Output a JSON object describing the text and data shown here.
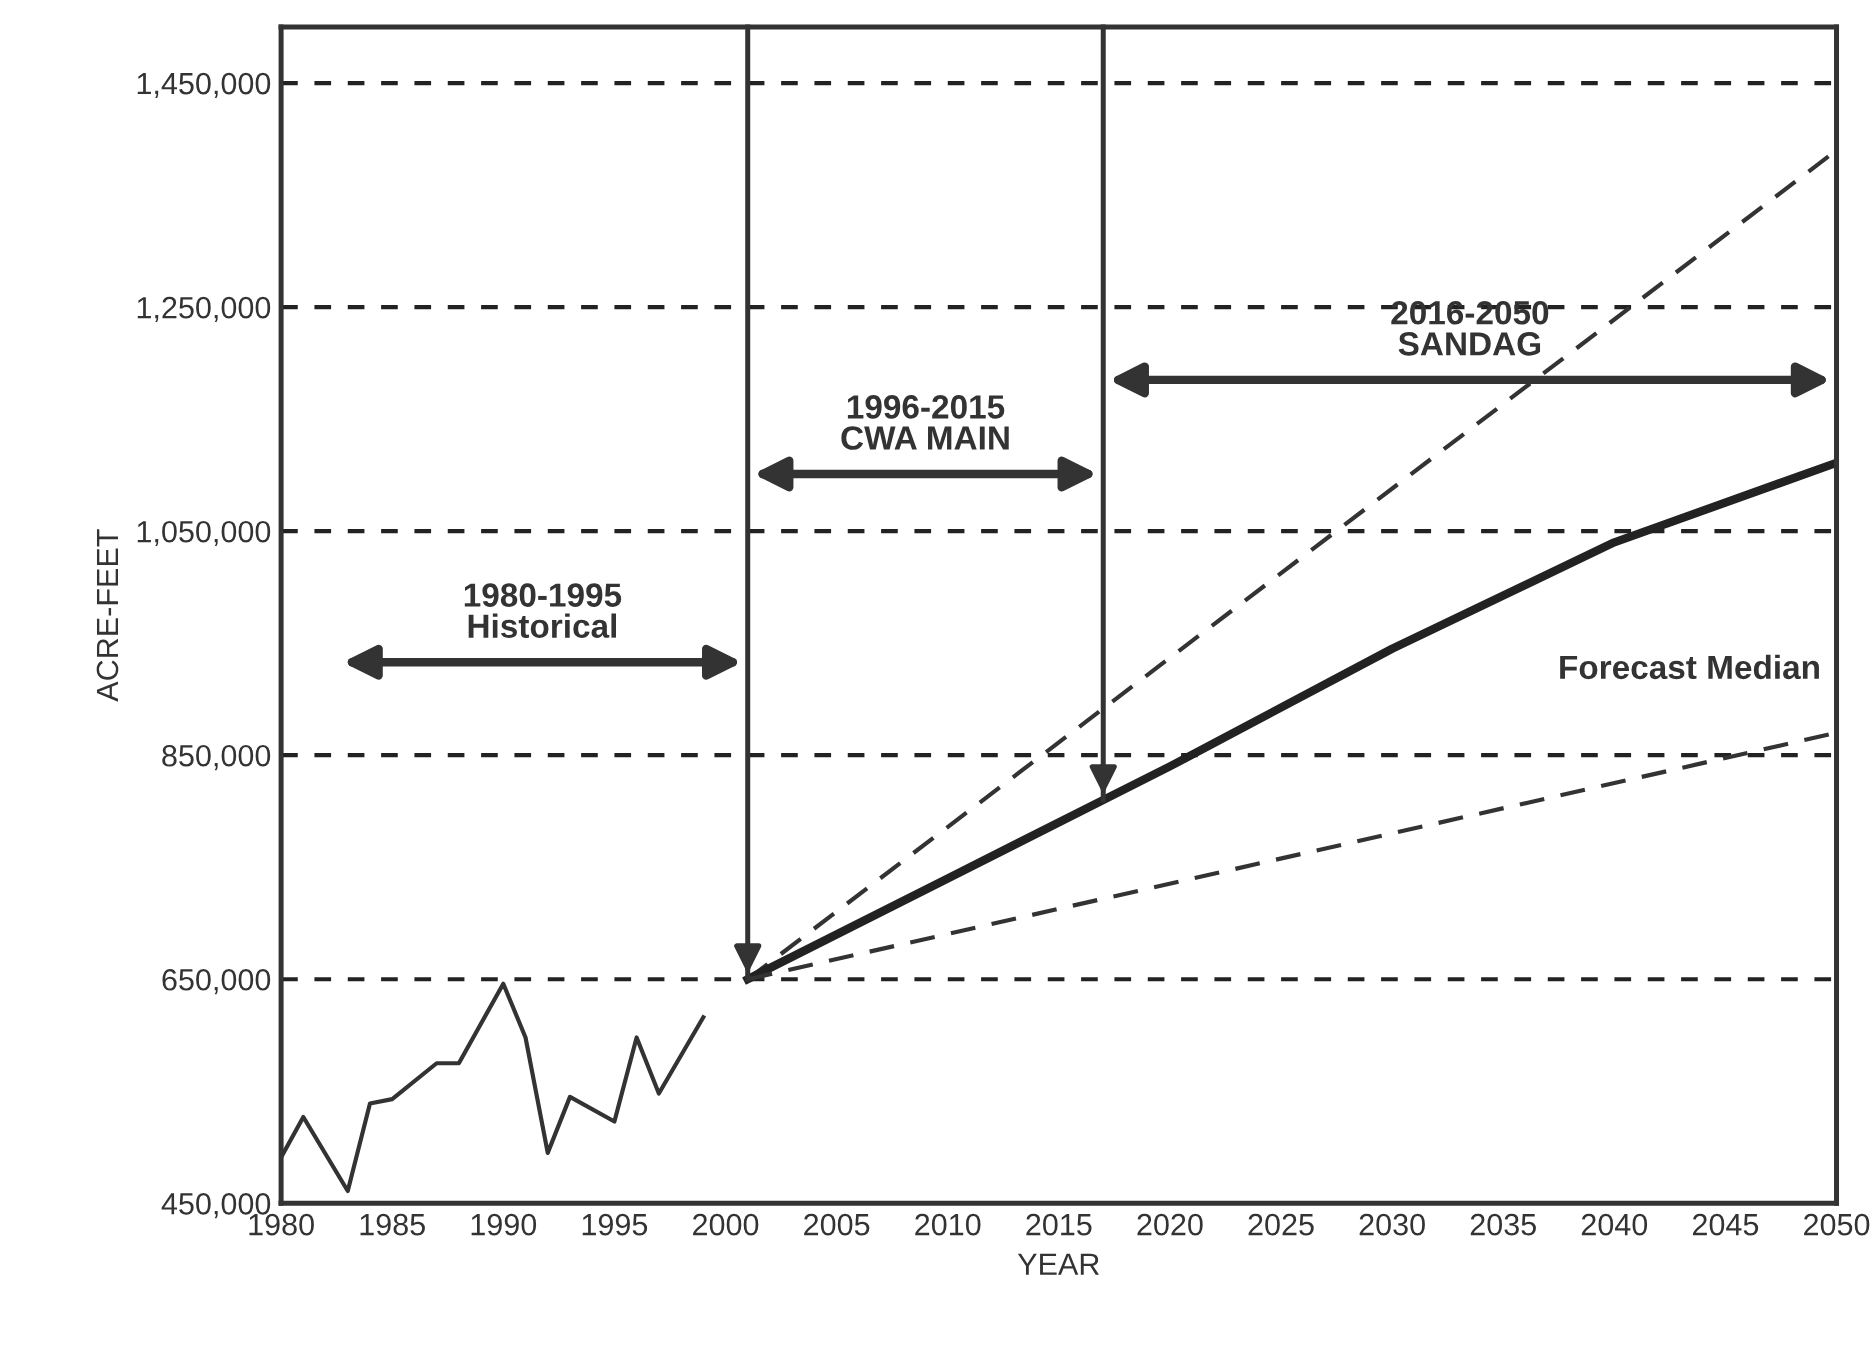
{
  "chart_data": {
    "type": "line",
    "xlabel": "YEAR",
    "ylabel": "ACRE-FEET",
    "xlim": [
      1980,
      2050
    ],
    "xticks": [
      1980,
      1985,
      1990,
      1995,
      2000,
      2005,
      2010,
      2015,
      2020,
      2025,
      2030,
      2035,
      2040,
      2045,
      2050
    ],
    "ylim": [
      450000,
      1500000
    ],
    "yticks": [
      {
        "value": 450000,
        "label": "450,000"
      },
      {
        "value": 650000,
        "label": "650,000"
      },
      {
        "value": 850000,
        "label": "850,000"
      },
      {
        "value": 1050000,
        "label": "1,050,000"
      },
      {
        "value": 1250000,
        "label": "1,250,000"
      },
      {
        "value": 1450000,
        "label": "1,450,000"
      }
    ],
    "grid": "y",
    "marker": "none",
    "series": [
      {
        "color": "#333333",
        "line_style": "solid",
        "x": [
          1980,
          1981,
          1983,
          1984,
          1985,
          1987,
          1988,
          1990,
          1991,
          1992,
          1993,
          1995,
          1996,
          1997,
          1999
        ],
        "values": [
          491000,
          527000,
          461000,
          539000,
          543000,
          575000,
          575000,
          646000,
          598000,
          495000,
          545000,
          523000,
          598000,
          548000,
          616000
        ]
      },
      {
        "color": "#333333",
        "line_style": "dashed",
        "x": [
          2001,
          2050
        ],
        "values": [
          650000,
          1390000
        ]
      },
      {
        "color": "#222222",
        "line_style": "solid",
        "x": [
          2001,
          2010,
          2020,
          2030,
          2040,
          2050
        ],
        "values": [
          650000,
          740000,
          840000,
          945000,
          1040000,
          1111000
        ]
      },
      {
        "color": "#333333",
        "line_style": "dashed",
        "x": [
          2001,
          2050
        ],
        "values": [
          650000,
          870000
        ]
      }
    ],
    "ref_lines": [
      {
        "axis": "x",
        "value": 2001,
        "color": "#333333"
      },
      {
        "axis": "x",
        "value": 2017,
        "color": "#333333"
      }
    ],
    "annotations": [
      "1980-1995\nHistorical",
      "1996-2015\nCWA MAIN",
      "2016-2050\nSANDAG",
      "Forecast Median"
    ]
  }
}
